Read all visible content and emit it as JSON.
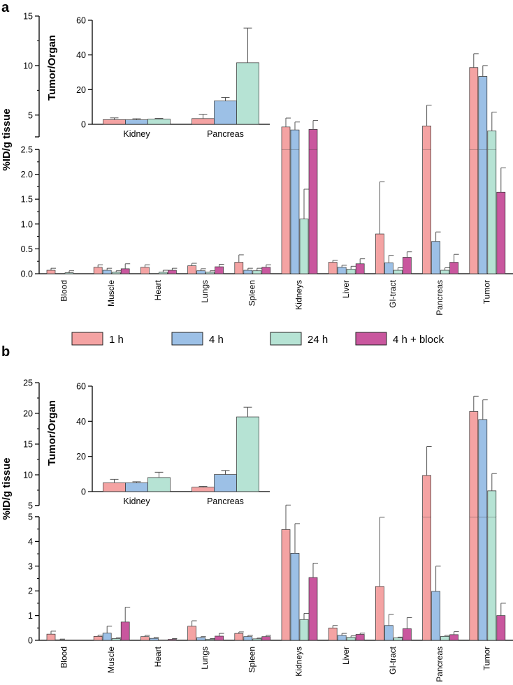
{
  "panel_labels": [
    "a",
    "b"
  ],
  "legend": [
    {
      "label": "1 h",
      "color": "#f4a3a3"
    },
    {
      "label": "4 h",
      "color": "#9cc0e6"
    },
    {
      "label": "24 h",
      "color": "#b6e3d4"
    },
    {
      "label": "4 h + block",
      "color": "#c9579e"
    }
  ],
  "chart_data": [
    {
      "panel": "a",
      "type": "bar",
      "ylabel": "%ID/g tissue",
      "axis_break": true,
      "lower_ylim": [
        0,
        2.5
      ],
      "lower_yticks": [
        "0.0",
        "0.5",
        "1.0",
        "1.5",
        "2.0",
        "2.5"
      ],
      "upper_ylim": [
        2.8,
        15
      ],
      "upper_yticks": [
        "5",
        "10",
        "15"
      ],
      "categories": [
        "Blood",
        "Muscle",
        "Heart",
        "Lungs",
        "Spleen",
        "Kidneys",
        "Liver",
        "GI-tract",
        "Pancreas",
        "Tumor"
      ],
      "series": [
        {
          "name": "1 h",
          "values": [
            0.07,
            0.13,
            0.13,
            0.16,
            0.23,
            3.8,
            0.23,
            0.8,
            3.9,
            9.8
          ],
          "errors": [
            0.04,
            0.05,
            0.05,
            0.05,
            0.15,
            0.9,
            0.04,
            1.05,
            2.1,
            1.4
          ]
        },
        {
          "name": "4 h",
          "values": [
            0.0,
            0.07,
            0.0,
            0.06,
            0.07,
            3.5,
            0.13,
            0.22,
            0.65,
            8.9
          ],
          "errors": [
            0.0,
            0.04,
            0.0,
            0.04,
            0.04,
            0.8,
            0.04,
            0.15,
            0.19,
            1.1
          ]
        },
        {
          "name": "24 h",
          "values": [
            0.02,
            0.03,
            0.03,
            0.03,
            0.06,
            1.1,
            0.09,
            0.07,
            0.07,
            3.4
          ],
          "errors": [
            0.04,
            0.03,
            0.04,
            0.03,
            0.05,
            0.6,
            0.06,
            0.05,
            0.05,
            1.9
          ]
        },
        {
          "name": "4 h + block",
          "values": [
            0.0,
            0.1,
            0.07,
            0.14,
            0.13,
            3.55,
            0.2,
            0.33,
            0.23,
            1.64
          ],
          "errors": [
            0.0,
            0.1,
            0.04,
            0.05,
            0.05,
            0.9,
            0.1,
            0.11,
            0.16,
            0.49
          ]
        }
      ],
      "inset": {
        "type": "bar",
        "ylabel": "Tumor/Organ",
        "ylim": [
          0,
          60
        ],
        "yticks": [
          "0",
          "20",
          "40",
          "60"
        ],
        "categories": [
          "Kidney",
          "Pancreas"
        ],
        "series": [
          {
            "name": "1 h",
            "values": [
              2.7,
              3.3
            ],
            "errors": [
              1.0,
              2.5
            ]
          },
          {
            "name": "4 h",
            "values": [
              2.6,
              13.5
            ],
            "errors": [
              0.6,
              2.0
            ]
          },
          {
            "name": "24 h",
            "values": [
              3.0,
              35.5
            ],
            "errors": [
              0.4,
              20.0
            ]
          }
        ]
      }
    },
    {
      "panel": "b",
      "type": "bar",
      "ylabel": "%ID/g tissue",
      "axis_break": true,
      "lower_ylim": [
        0,
        5
      ],
      "lower_yticks": [
        "0",
        "1",
        "2",
        "3",
        "4",
        "5"
      ],
      "upper_ylim": [
        5,
        25
      ],
      "upper_yticks": [
        "5",
        "10",
        "15",
        "20",
        "25"
      ],
      "categories": [
        "Blood",
        "Muscle",
        "Heart",
        "Lungs",
        "Spleen",
        "Kidneys",
        "Liver",
        "GI-tract",
        "Pancreas",
        "Tumor"
      ],
      "series": [
        {
          "name": "1 h",
          "values": [
            0.25,
            0.16,
            0.15,
            0.57,
            0.28,
            4.48,
            0.5,
            2.18,
            9.9,
            20.3
          ],
          "errors": [
            0.12,
            0.05,
            0.05,
            0.22,
            0.06,
            0.6,
            0.1,
            2.8,
            4.7,
            2.5
          ]
        },
        {
          "name": "4 h",
          "values": [
            0.02,
            0.29,
            0.08,
            0.11,
            0.15,
            3.52,
            0.2,
            0.6,
            1.98,
            19.0
          ],
          "errors": [
            0.03,
            0.28,
            0.04,
            0.04,
            0.05,
            1.2,
            0.08,
            0.45,
            1.02,
            3.2
          ]
        },
        {
          "name": "24 h",
          "values": [
            0.0,
            0.07,
            0.01,
            0.04,
            0.06,
            0.84,
            0.12,
            0.1,
            0.16,
            7.4
          ],
          "errors": [
            0.0,
            0.03,
            0.0,
            0.03,
            0.03,
            0.25,
            0.06,
            0.03,
            0.04,
            2.8
          ]
        },
        {
          "name": "4 h + block",
          "values": [
            0.0,
            0.74,
            0.04,
            0.17,
            0.15,
            2.54,
            0.24,
            0.47,
            0.23,
            1.0
          ],
          "errors": [
            0.0,
            0.6,
            0.03,
            0.11,
            0.05,
            0.58,
            0.05,
            0.45,
            0.12,
            0.5
          ]
        }
      ],
      "inset": {
        "type": "bar",
        "ylabel": "Tumor/Organ",
        "ylim": [
          0,
          60
        ],
        "yticks": [
          "0",
          "20",
          "40",
          "60"
        ],
        "categories": [
          "Kidney",
          "Pancreas"
        ],
        "series": [
          {
            "name": "1 h",
            "values": [
              5.0,
              2.5
            ],
            "errors": [
              2.0,
              0.5
            ]
          },
          {
            "name": "4 h",
            "values": [
              5.0,
              9.7
            ],
            "errors": [
              0.6,
              2.3
            ]
          },
          {
            "name": "24 h",
            "values": [
              8.0,
              42.5
            ],
            "errors": [
              3.0,
              5.5
            ]
          }
        ]
      }
    }
  ]
}
